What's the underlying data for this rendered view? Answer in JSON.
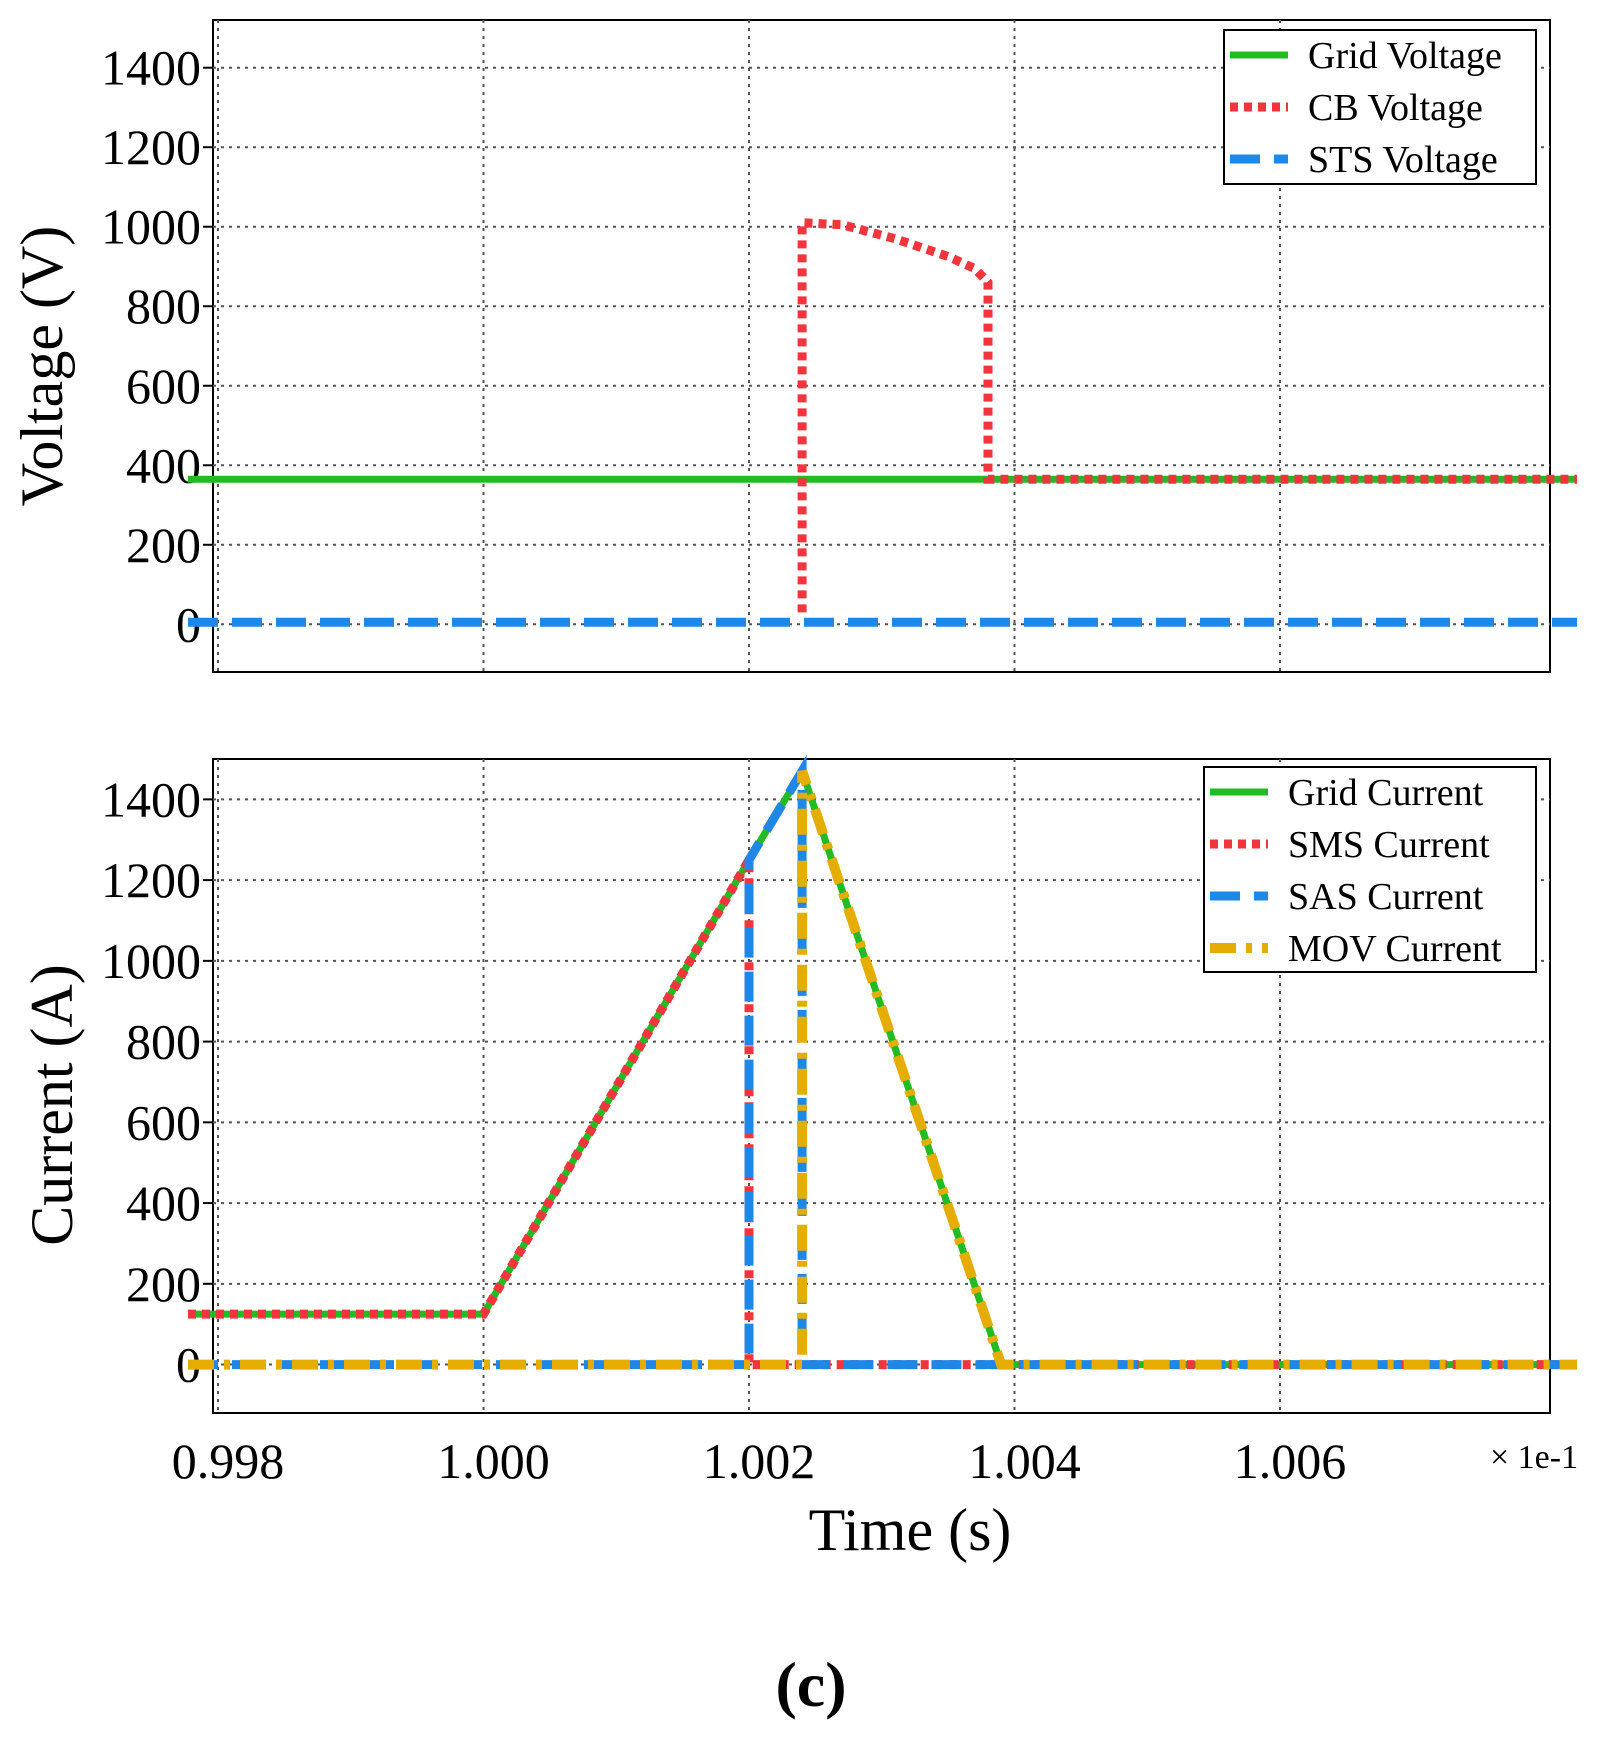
{
  "figure_label": "(c)",
  "colors": {
    "grid": "#2ca02c",
    "green": "#22bb22",
    "red": "#f2353d",
    "blue": "#1f87e5",
    "gold": "#e5ad00",
    "gridline": "#555555"
  },
  "chart_data": [
    {
      "type": "line",
      "title": "",
      "xlabel": "",
      "ylabel": "Voltage (V)",
      "xlim": [
        0.998,
        1.008
      ],
      "ylim": [
        -120,
        1520
      ],
      "yticks": [
        0,
        200,
        400,
        600,
        800,
        1000,
        1200,
        1400
      ],
      "yticklabels": [
        "0",
        "200",
        "400",
        "600",
        "800",
        "1000",
        "1200",
        "1400"
      ],
      "xticks": [
        0.998,
        1.0,
        1.002,
        1.004,
        1.006
      ],
      "grid": true,
      "legend_position": "top-right",
      "series": [
        {
          "name": "Grid Voltage",
          "style": "solid",
          "color_key": "green",
          "x": [
            0.998,
            1.0039,
            1.008
          ],
          "y": [
            365,
            365,
            365
          ]
        },
        {
          "name": "CB Voltage",
          "style": "dotted",
          "color_key": "red",
          "x": [
            1.0024,
            1.0024,
            1.0027,
            1.0031,
            1.0035,
            1.0037,
            1.0038,
            1.0038,
            1.0039,
            1.008
          ],
          "y": [
            30,
            1010,
            1005,
            970,
            925,
            895,
            860,
            365,
            365,
            365
          ]
        },
        {
          "name": "STS Voltage",
          "style": "dashed",
          "color_key": "blue",
          "x": [
            0.998,
            1.008
          ],
          "y": [
            5,
            5
          ]
        }
      ]
    },
    {
      "type": "line",
      "title": "",
      "xlabel": "Time (s)",
      "ylabel": "Current (A)",
      "xlim": [
        0.998,
        1.008
      ],
      "ylim": [
        -120,
        1500
      ],
      "yticks": [
        0,
        200,
        400,
        600,
        800,
        1000,
        1200,
        1400
      ],
      "yticklabels": [
        "0",
        "200",
        "400",
        "600",
        "800",
        "1000",
        "1200",
        "1400"
      ],
      "xticks": [
        0.998,
        1.0,
        1.002,
        1.004,
        1.006
      ],
      "xticklabels": [
        "0.998",
        "1.000",
        "1.002",
        "1.004",
        "1.006"
      ],
      "x_multiplier": "× 1e-1",
      "grid": true,
      "legend_position": "top-right",
      "series": [
        {
          "name": "Grid Current",
          "style": "solid",
          "color_key": "green",
          "x": [
            0.998,
            1.0,
            1.002,
            1.0024,
            1.0039,
            1.008
          ],
          "y": [
            125,
            125,
            1250,
            1470,
            0,
            0
          ]
        },
        {
          "name": "SMS Current",
          "style": "dotted",
          "color_key": "red",
          "x": [
            0.998,
            1.0,
            1.002,
            1.002,
            1.008
          ],
          "y": [
            125,
            125,
            1250,
            0,
            0
          ]
        },
        {
          "name": "SAS Current",
          "style": "dashed",
          "color_key": "blue",
          "x": [
            0.998,
            1.002,
            1.002,
            1.0024,
            1.0024,
            1.008
          ],
          "y": [
            0,
            0,
            1250,
            1470,
            0,
            0
          ]
        },
        {
          "name": "MOV Current",
          "style": "dashdot",
          "color_key": "gold",
          "x": [
            0.998,
            1.0024,
            1.0024,
            1.0039,
            1.008
          ],
          "y": [
            0,
            0,
            1470,
            0,
            0
          ]
        }
      ]
    }
  ]
}
